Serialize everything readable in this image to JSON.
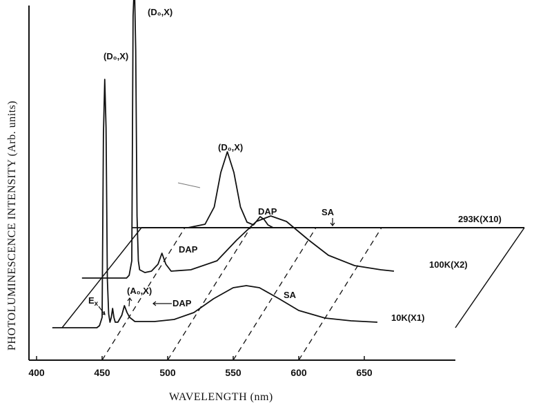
{
  "chart_data": {
    "type": "line",
    "title": "",
    "xlabel": "WAVELENGTH (nm)",
    "ylabel": "PHOTOLUMINESCENCE INTENSITY (Arb. units)",
    "x_ticks": [
      400,
      450,
      500,
      550,
      600,
      650
    ],
    "xlim": [
      400,
      660
    ],
    "series": [
      {
        "name": "10K(X1)",
        "points": [
          [
            412,
            0
          ],
          [
            446,
            0
          ],
          [
            448,
            3
          ],
          [
            450,
            15
          ],
          [
            451,
            280
          ],
          [
            452,
            360
          ],
          [
            453,
            290
          ],
          [
            454,
            70
          ],
          [
            455,
            20
          ],
          [
            456,
            8
          ],
          [
            457,
            15
          ],
          [
            458,
            28
          ],
          [
            459,
            15
          ],
          [
            460,
            8
          ],
          [
            462,
            8
          ],
          [
            465,
            18
          ],
          [
            467,
            32
          ],
          [
            469,
            22
          ],
          [
            471,
            15
          ],
          [
            475,
            9
          ],
          [
            490,
            9
          ],
          [
            505,
            12
          ],
          [
            520,
            22
          ],
          [
            535,
            42
          ],
          [
            550,
            58
          ],
          [
            560,
            61
          ],
          [
            570,
            58
          ],
          [
            585,
            42
          ],
          [
            600,
            25
          ],
          [
            620,
            14
          ],
          [
            640,
            10
          ],
          [
            660,
            8
          ]
        ]
      },
      {
        "name": "100K(X2)",
        "points": [
          [
            412,
            0
          ],
          [
            446,
            0
          ],
          [
            448,
            4
          ],
          [
            450,
            25
          ],
          [
            451,
            380
          ],
          [
            452,
            430
          ],
          [
            453,
            330
          ],
          [
            454,
            90
          ],
          [
            455,
            25
          ],
          [
            456,
            12
          ],
          [
            460,
            8
          ],
          [
            465,
            10
          ],
          [
            470,
            20
          ],
          [
            473,
            36
          ],
          [
            476,
            20
          ],
          [
            480,
            10
          ],
          [
            495,
            12
          ],
          [
            515,
            25
          ],
          [
            530,
            55
          ],
          [
            545,
            82
          ],
          [
            556,
            90
          ],
          [
            568,
            82
          ],
          [
            585,
            55
          ],
          [
            600,
            33
          ],
          [
            620,
            18
          ],
          [
            640,
            12
          ],
          [
            650,
            10
          ]
        ]
      },
      {
        "name": "293K(X10)",
        "points": [
          [
            412,
            0
          ],
          [
            440,
            0
          ],
          [
            455,
            0
          ],
          [
            468,
            5
          ],
          [
            475,
            30
          ],
          [
            480,
            80
          ],
          [
            485,
            110
          ],
          [
            490,
            80
          ],
          [
            495,
            30
          ],
          [
            500,
            8
          ],
          [
            505,
            4
          ],
          [
            510,
            16
          ],
          [
            513,
            12
          ],
          [
            516,
            4
          ],
          [
            520,
            0
          ],
          [
            550,
            0
          ],
          [
            600,
            0
          ],
          [
            660,
            0
          ]
        ]
      }
    ],
    "annotations": {
      "do_x_10k": "(D₀,X)",
      "do_x_100k": "(D₀,X)",
      "do_x_293k": "(D₀,X)",
      "ao_x": "(A₀,X)",
      "dap_10k": "DAP",
      "dap_100k": "DAP",
      "dap_293k": "DAP",
      "ex": "E",
      "ex_sub": "x",
      "sa_10k": "SA",
      "sa_100k": "SA",
      "label_10k": "10K(X1)",
      "label_100k": "100K(X2)",
      "label_293k": "293K(X10)"
    },
    "grid": "dashed lines along temperature depth at each tick",
    "legend": "none (curves labeled at right)"
  }
}
